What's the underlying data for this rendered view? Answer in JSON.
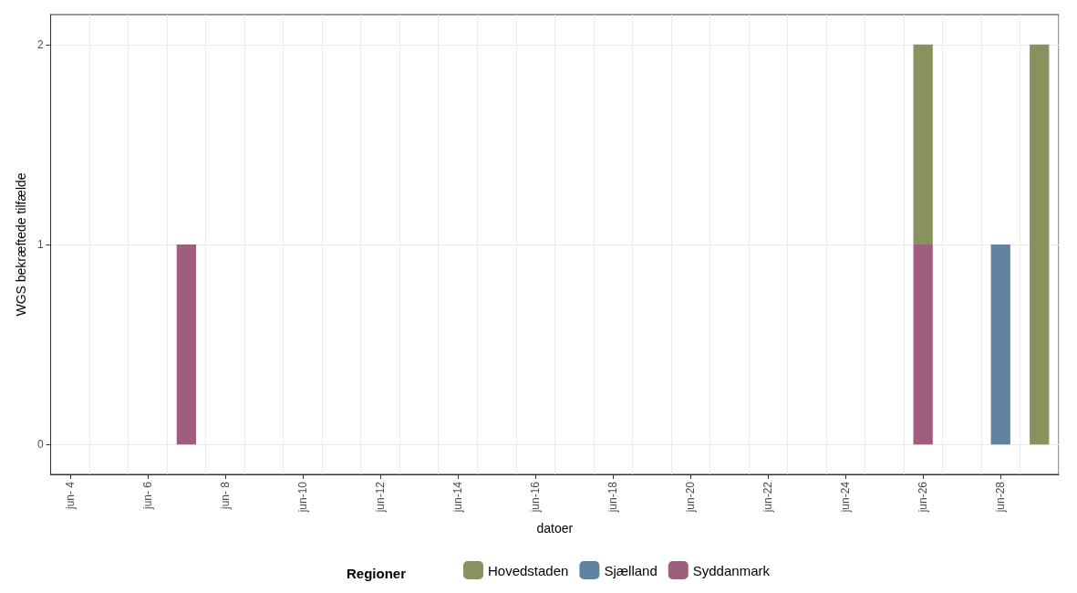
{
  "chart_data": {
    "type": "bar",
    "stacked": true,
    "xlabel": "datoer",
    "ylabel": "WGS bekræftede tilfælde",
    "legend_title": "Regioner",
    "legend": "bottom",
    "grid": true,
    "categories": [
      "jun- 4",
      null,
      "jun- 6",
      null,
      "jun- 8",
      null,
      "jun-10",
      null,
      "jun-12",
      null,
      "jun-14",
      null,
      "jun-16",
      null,
      "jun-18",
      null,
      "jun-20",
      null,
      "jun-22",
      null,
      "jun-24",
      null,
      "jun-26",
      null,
      "jun-28",
      null
    ],
    "ylim": [
      -0.15,
      2.15
    ],
    "yticks": [
      0,
      1,
      2
    ],
    "series": [
      {
        "name": "Syddanmark",
        "color": "#9e5f7e",
        "values": [
          null,
          null,
          null,
          1,
          null,
          null,
          null,
          null,
          null,
          null,
          null,
          null,
          null,
          null,
          null,
          null,
          null,
          null,
          null,
          null,
          null,
          null,
          1,
          null,
          null,
          null
        ]
      },
      {
        "name": "Sjælland",
        "color": "#5f83a0",
        "values": [
          null,
          null,
          null,
          null,
          null,
          null,
          null,
          null,
          null,
          null,
          null,
          null,
          null,
          null,
          null,
          null,
          null,
          null,
          null,
          null,
          null,
          null,
          null,
          null,
          1,
          null
        ]
      },
      {
        "name": "Hovedstaden",
        "color": "#87925f",
        "values": [
          null,
          null,
          null,
          null,
          null,
          null,
          null,
          null,
          null,
          null,
          null,
          null,
          null,
          null,
          null,
          null,
          null,
          null,
          null,
          null,
          null,
          null,
          1,
          null,
          null,
          2
        ]
      }
    ]
  }
}
